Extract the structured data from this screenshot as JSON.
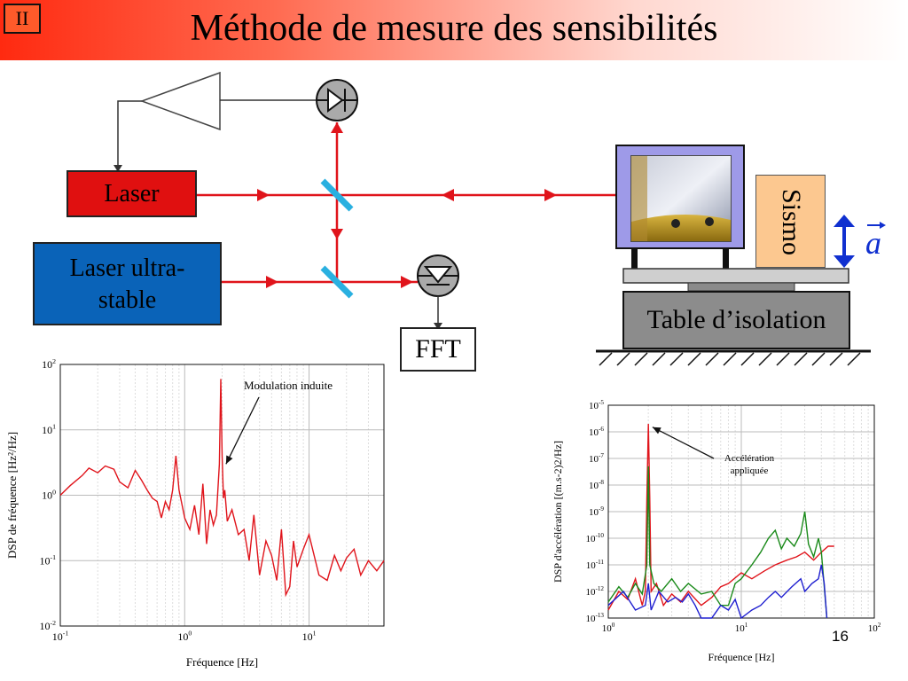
{
  "header": {
    "badge": "II",
    "title": "Méthode de mesure des sensibilités"
  },
  "diagram": {
    "laser": "Laser",
    "laser_ultra_line1": "Laser ultra-",
    "laser_ultra_line2": "stable",
    "fft": "FFT",
    "sismo": "Sismo",
    "table": "Table d’isolation",
    "accel_symbol": "a"
  },
  "page_number": "16",
  "chart_data": [
    {
      "type": "line",
      "xlabel": "Fréquence   [Hz]",
      "ylabel": "DSP de fréquence   [Hz²/Hz]",
      "xscale": "log",
      "yscale": "log",
      "xlim": [
        0.1,
        40
      ],
      "ylim": [
        0.01,
        100
      ],
      "x_ticks": [
        "10-1",
        "100",
        "101"
      ],
      "y_ticks": [
        "10-2",
        "10-1",
        "100",
        "101",
        "102"
      ],
      "annotation": "Modulation induite",
      "series": [
        {
          "color": "#e0141b",
          "x": [
            0.1,
            0.12,
            0.15,
            0.17,
            0.2,
            0.23,
            0.27,
            0.3,
            0.35,
            0.4,
            0.45,
            0.5,
            0.55,
            0.6,
            0.65,
            0.7,
            0.75,
            0.8,
            0.85,
            0.9,
            1.0,
            1.1,
            1.2,
            1.3,
            1.4,
            1.5,
            1.6,
            1.7,
            1.8,
            1.9,
            1.95,
            2.0,
            2.05,
            2.1,
            2.2,
            2.4,
            2.7,
            3.0,
            3.3,
            3.6,
            4.0,
            4.5,
            5.0,
            5.5,
            6.0,
            6.5,
            7.0,
            7.5,
            8.0,
            9.0,
            10,
            12,
            14,
            16,
            18,
            20,
            23,
            26,
            30,
            35,
            40
          ],
          "y": [
            1.0,
            1.4,
            2.0,
            2.6,
            2.2,
            2.8,
            2.5,
            1.6,
            1.3,
            2.4,
            1.7,
            1.2,
            0.9,
            0.8,
            0.45,
            0.8,
            0.6,
            1.2,
            4.0,
            1.2,
            0.45,
            0.3,
            0.7,
            0.25,
            1.5,
            0.18,
            0.6,
            0.35,
            0.5,
            3.0,
            60,
            4.0,
            0.9,
            1.2,
            0.4,
            0.6,
            0.25,
            0.3,
            0.1,
            0.5,
            0.06,
            0.2,
            0.12,
            0.05,
            0.3,
            0.03,
            0.04,
            0.2,
            0.08,
            0.15,
            0.25,
            0.06,
            0.05,
            0.12,
            0.07,
            0.11,
            0.15,
            0.06,
            0.1,
            0.07,
            0.1
          ]
        }
      ]
    },
    {
      "type": "line",
      "xlabel": "Fréquence   [Hz]",
      "ylabel": "DSP d'accélération   [(m.s-2)2/Hz]",
      "xscale": "log",
      "yscale": "log",
      "xlim": [
        1,
        100
      ],
      "ylim": [
        1e-13,
        1e-05
      ],
      "x_ticks": [
        "100",
        "101",
        "102"
      ],
      "y_ticks": [
        "10-13",
        "10-12",
        "10-11",
        "10-10",
        "10-9",
        "10-8",
        "10-7",
        "10-6",
        "10-5"
      ],
      "annotation": "Accélération appliquée",
      "series": [
        {
          "color": "#e0141b",
          "x": [
            1.0,
            1.2,
            1.4,
            1.6,
            1.8,
            1.9,
            1.95,
            2.0,
            2.05,
            2.1,
            2.3,
            2.6,
            3,
            3.5,
            4,
            5,
            6,
            7,
            8,
            10,
            12,
            15,
            18,
            22,
            26,
            30,
            35,
            40,
            45,
            50
          ],
          "y": [
            2e-13,
            1e-12,
            5e-13,
            3e-12,
            3e-13,
            1e-12,
            3e-09,
            2e-06,
            3e-09,
            1e-12,
            2e-12,
            3e-13,
            8e-13,
            4e-13,
            1e-12,
            3e-13,
            6e-13,
            1.5e-12,
            2e-12,
            5e-12,
            3e-12,
            6e-12,
            1e-11,
            1.5e-11,
            2e-11,
            3e-11,
            1.5e-11,
            3e-11,
            5e-11,
            5e-11
          ]
        },
        {
          "color": "#1a8a1a",
          "x": [
            1.0,
            1.2,
            1.4,
            1.6,
            1.8,
            1.95,
            2.0,
            2.05,
            2.2,
            2.5,
            3,
            3.5,
            4,
            5,
            6,
            7,
            8,
            9,
            10,
            12,
            14,
            16,
            18,
            20,
            22,
            25,
            28,
            30,
            32,
            35,
            38,
            40,
            44
          ],
          "y": [
            4e-13,
            1.5e-12,
            6e-13,
            2e-12,
            8e-13,
            1e-11,
            5e-08,
            1e-11,
            2e-12,
            1e-12,
            3e-12,
            1e-12,
            2e-12,
            8e-13,
            1e-12,
            3e-13,
            3e-13,
            2e-12,
            3e-12,
            1e-11,
            3e-11,
            1e-10,
            2e-10,
            4e-11,
            1e-10,
            5e-11,
            1.5e-10,
            1e-09,
            6e-11,
            2e-11,
            1e-10,
            3e-11,
            1e-13
          ]
        },
        {
          "color": "#1f1fd0",
          "x": [
            1.0,
            1.3,
            1.6,
            1.9,
            2.0,
            2.1,
            2.4,
            2.8,
            3.2,
            3.6,
            4,
            4.5,
            5,
            6,
            7,
            8,
            9,
            10,
            12,
            14,
            16,
            18,
            20,
            24,
            28,
            30,
            34,
            38,
            40,
            42,
            44
          ],
          "y": [
            3e-13,
            1e-12,
            2e-13,
            3e-13,
            2e-12,
            2e-13,
            1e-12,
            4e-13,
            6e-13,
            4e-13,
            8e-13,
            3e-13,
            1e-13,
            1e-13,
            3e-13,
            2e-13,
            5e-13,
            1e-13,
            2e-13,
            3e-13,
            6e-13,
            1e-12,
            6e-13,
            1.5e-12,
            3e-12,
            1e-12,
            2e-12,
            3e-12,
            1e-11,
            2e-12,
            1e-13
          ]
        }
      ]
    }
  ]
}
